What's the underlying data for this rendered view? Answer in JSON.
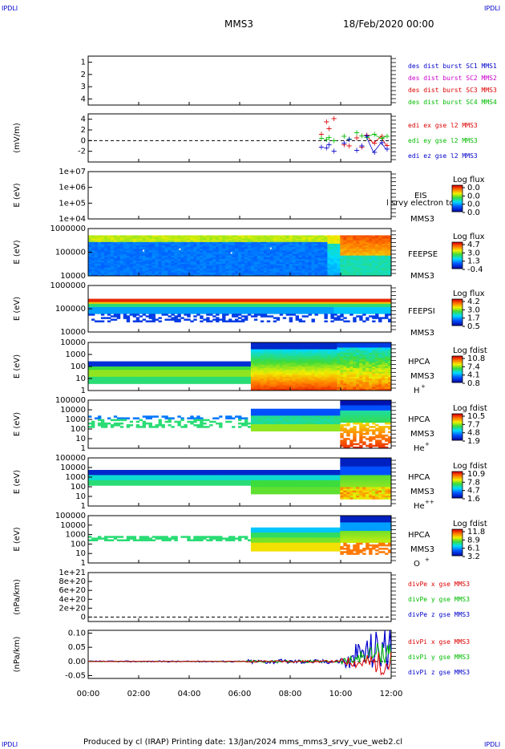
{
  "corner_tags": {
    "tl": "IPDLI",
    "tr": "IPDLI",
    "bl": "IPDLI",
    "br": "IPDLI"
  },
  "header": {
    "title": "MMS3",
    "date": "18/Feb/2020 00:00"
  },
  "footer": "Produced by cl (IRAP)   Printing date: 13/Jan/2024   mms_mms3_srvy_vue_web2.cl",
  "colors": {
    "blue": "#0000cc",
    "magenta": "#cc00cc",
    "red": "#dd0000",
    "green": "#00bb00"
  },
  "chart_data": [
    {
      "type": "line",
      "id": "p1",
      "ylabel": "",
      "ylim": [
        0.5,
        4.5
      ],
      "yticks": [
        "1",
        "2",
        "3",
        "4"
      ],
      "legend": [
        {
          "label": "des dist burst SC1 MMS1",
          "color": "#0000cc"
        },
        {
          "label": "des dist burst SC2 MMS2",
          "color": "#cc00cc"
        },
        {
          "label": "des dist burst SC3 MMS3",
          "color": "#dd0000"
        },
        {
          "label": "des dist burst SC4 MMS4",
          "color": "#00bb00"
        }
      ],
      "series": []
    },
    {
      "type": "scatter",
      "id": "p2",
      "ylabel": "(mV/m)",
      "ylim": [
        -4,
        5
      ],
      "yticks": [
        "4",
        "2",
        "0",
        "-2"
      ],
      "legend": [
        {
          "label": "edi ex gse l2 MMS3",
          "color": "#dd0000"
        },
        {
          "label": "edi ey gse l2 MMS3",
          "color": "#00bb00"
        },
        {
          "label": "edi ez gse l2 MMS3",
          "color": "#0000cc"
        }
      ],
      "x": [
        9.2,
        9.4,
        9.5,
        9.7,
        10.1,
        10.3,
        10.6,
        10.8,
        11.0,
        11.3,
        11.6,
        11.8
      ],
      "series": [
        {
          "values": [
            1.2,
            3.5,
            2.2,
            4.1,
            -0.8,
            -1.0,
            0.5,
            -1.2,
            1.0,
            -0.5,
            0.8,
            -0.9
          ]
        },
        {
          "values": [
            0.4,
            0.2,
            0.6,
            0.0,
            0.8,
            0.3,
            1.5,
            0.9,
            0.6,
            1.2,
            0.4,
            0.8
          ]
        },
        {
          "values": [
            -1.2,
            -1.4,
            -0.8,
            -2.0,
            -0.5,
            0.2,
            -1.8,
            -1.0,
            0.9,
            -2.2,
            -0.4,
            -1.6
          ]
        }
      ]
    },
    {
      "type": "heatmap",
      "id": "p3",
      "ylabel": "E (eV)",
      "ylim": [
        10000,
        10000000
      ],
      "yticks": [
        "1e+07",
        "1e+06",
        "1e+05",
        "1e+04"
      ],
      "labels": [
        "EIS",
        "MMS3"
      ],
      "overlay": "l srvy electron to",
      "cbar": {
        "title": "Log flux",
        "ticks": [
          "0.0",
          "0.0",
          "0.0",
          "0.0"
        ]
      }
    },
    {
      "type": "heatmap",
      "id": "p4",
      "ylabel": "E (eV)",
      "ylim": [
        10000,
        1000000
      ],
      "yticks": [
        "1000000",
        "100000",
        "10000"
      ],
      "labels": [
        "FEEPSE",
        "MMS3"
      ],
      "cbar": {
        "title": "Log flux",
        "ticks": [
          "4.7",
          "3.0",
          "1.3",
          "-0.4"
        ]
      }
    },
    {
      "type": "heatmap",
      "id": "p5",
      "ylabel": "E (eV)",
      "ylim": [
        10000,
        1000000
      ],
      "yticks": [
        "1000000",
        "100000",
        "10000"
      ],
      "labels": [
        "FEEPSI",
        "MMS3"
      ],
      "cbar": {
        "title": "Log flux",
        "ticks": [
          "4.2",
          "3.0",
          "1.7",
          "0.5"
        ]
      }
    },
    {
      "type": "heatmap",
      "id": "p6",
      "ylabel": "E (eV)",
      "ylim": [
        1,
        10000
      ],
      "yticks": [
        "10000",
        "1000",
        "100",
        "10",
        "1"
      ],
      "labels": [
        "HPCA",
        "MMS3"
      ],
      "species": "H",
      "charge": "+",
      "cbar": {
        "title": "Log fdist",
        "ticks": [
          "10.8",
          "7.4",
          "4.1",
          "0.8"
        ]
      }
    },
    {
      "type": "heatmap",
      "id": "p7",
      "ylabel": "E (eV)",
      "ylim": [
        1,
        100000
      ],
      "yticks": [
        "100000",
        "10000",
        "1000",
        "100",
        "10",
        "1"
      ],
      "labels": [
        "HPCA",
        "MMS3"
      ],
      "species": "He",
      "charge": "+",
      "cbar": {
        "title": "Log fdist",
        "ticks": [
          "10.5",
          "7.7",
          "4.8",
          "1.9"
        ]
      }
    },
    {
      "type": "heatmap",
      "id": "p8",
      "ylabel": "E (eV)",
      "ylim": [
        1,
        100000
      ],
      "yticks": [
        "100000",
        "10000",
        "1000",
        "100",
        "10",
        "1"
      ],
      "labels": [
        "HPCA",
        "MMS3"
      ],
      "species": "He",
      "charge": "++",
      "cbar": {
        "title": "Log fdist",
        "ticks": [
          "10.9",
          "7.8",
          "4.7",
          "1.6"
        ]
      }
    },
    {
      "type": "heatmap",
      "id": "p9",
      "ylabel": "E (eV)",
      "ylim": [
        1,
        100000
      ],
      "yticks": [
        "100000",
        "10000",
        "1000",
        "100",
        "10",
        "1"
      ],
      "labels": [
        "HPCA",
        "MMS3"
      ],
      "species": "O",
      "charge": "+",
      "cbar": {
        "title": "Log fdist",
        "ticks": [
          "11.8",
          "8.9",
          "6.1",
          "3.2"
        ]
      }
    },
    {
      "type": "line",
      "id": "p10",
      "ylabel": "(nPa/km)",
      "ylim": [
        -1e+20,
        1e+21
      ],
      "yticks": [
        "1e+21",
        "8e+20",
        "6e+20",
        "4e+20",
        "2e+20",
        "0"
      ],
      "legend": [
        {
          "label": "divPe x gse MMS3",
          "color": "#dd0000"
        },
        {
          "label": "divPe y gse MMS3",
          "color": "#00bb00"
        },
        {
          "label": "divPe z gse MMS3",
          "color": "#0000cc"
        }
      ],
      "series": []
    },
    {
      "type": "line",
      "id": "p11",
      "ylabel": "(nPa/km)",
      "ylim": [
        -0.06,
        0.11
      ],
      "yticks": [
        "0.10",
        "0.05",
        "0.00",
        "-0.05"
      ],
      "legend": [
        {
          "label": "divPi x gse MMS3",
          "color": "#dd0000"
        },
        {
          "label": "divPi y gse MMS3",
          "color": "#00bb00"
        },
        {
          "label": "divPi z gse MMS3",
          "color": "#0000cc"
        }
      ]
    }
  ],
  "xaxis": {
    "xlim": [
      0,
      12
    ],
    "ticks": [
      "00:00",
      "02:00",
      "04:00",
      "06:00",
      "08:00",
      "10:00",
      "12:00"
    ]
  }
}
